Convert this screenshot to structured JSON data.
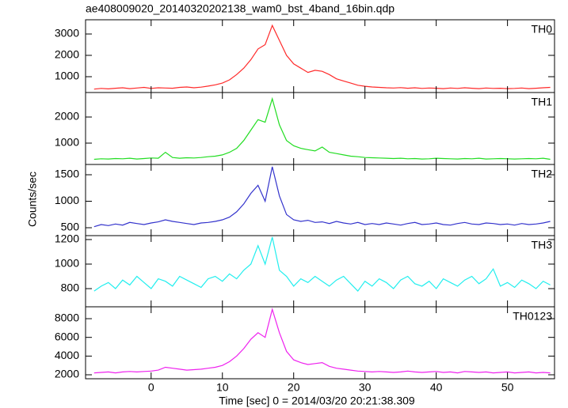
{
  "title": "ae408009020_20140320202138_wam0_bst_4band_16bin.qdp",
  "xlabel": "Time [sec] 0 = 2014/03/20 20:21:38.309",
  "ylabel": "Counts/sec",
  "chart_data": [
    {
      "type": "line",
      "xlim": [
        -9.2,
        56.6
      ],
      "xticks": [
        0,
        10,
        20,
        30,
        40,
        50
      ],
      "ylim": [
        259,
        3667
      ],
      "yticks": [
        1000,
        2000,
        3000
      ],
      "x": [
        -8,
        -7,
        -6,
        -5,
        -4,
        -3,
        -2,
        -1,
        0,
        1,
        2,
        3,
        4,
        5,
        6,
        7,
        8,
        9,
        10,
        11,
        12,
        13,
        14,
        15,
        16,
        17,
        18,
        19,
        20,
        21,
        22,
        23,
        24,
        25,
        26,
        27,
        28,
        29,
        30,
        31,
        32,
        33,
        34,
        35,
        36,
        37,
        38,
        39,
        40,
        41,
        42,
        43,
        44,
        45,
        46,
        47,
        48,
        49,
        50,
        51,
        52,
        53,
        54,
        55,
        56
      ],
      "series": [
        {
          "name": "TH0",
          "color": "#ff2a2a",
          "values": [
            420,
            450,
            430,
            460,
            480,
            440,
            470,
            500,
            450,
            480,
            470,
            460,
            500,
            520,
            480,
            510,
            560,
            620,
            700,
            850,
            1100,
            1400,
            1800,
            2300,
            2500,
            3400,
            2700,
            2000,
            1600,
            1400,
            1200,
            1300,
            1250,
            1100,
            900,
            800,
            700,
            600,
            550,
            520,
            500,
            480,
            470,
            490,
            460,
            480,
            450,
            470,
            460,
            440,
            470,
            450,
            480,
            460,
            440,
            470,
            450,
            460,
            440,
            450,
            470,
            440,
            460,
            480,
            500
          ]
        }
      ]
    },
    {
      "type": "line",
      "xlim": [
        -9.2,
        56.6
      ],
      "xticks": [
        0,
        10,
        20,
        30,
        40,
        50
      ],
      "ylim": [
        182,
        2939
      ],
      "yticks": [
        1000,
        2000
      ],
      "x": [
        -8,
        -7,
        -6,
        -5,
        -4,
        -3,
        -2,
        -1,
        0,
        1,
        2,
        3,
        4,
        5,
        6,
        7,
        8,
        9,
        10,
        11,
        12,
        13,
        14,
        15,
        16,
        17,
        18,
        19,
        20,
        21,
        22,
        23,
        24,
        25,
        26,
        27,
        28,
        29,
        30,
        31,
        32,
        33,
        34,
        35,
        36,
        37,
        38,
        39,
        40,
        41,
        42,
        43,
        44,
        45,
        46,
        47,
        48,
        49,
        50,
        51,
        52,
        53,
        54,
        55,
        56
      ],
      "series": [
        {
          "name": "TH1",
          "color": "#22dd22",
          "values": [
            380,
            400,
            390,
            410,
            400,
            420,
            390,
            410,
            430,
            420,
            650,
            450,
            420,
            440,
            430,
            450,
            480,
            500,
            550,
            650,
            800,
            1100,
            1500,
            1900,
            1800,
            2700,
            1700,
            1100,
            900,
            800,
            750,
            700,
            850,
            650,
            600,
            550,
            500,
            480,
            450,
            440,
            430,
            420,
            410,
            420,
            400,
            410,
            390,
            400,
            420,
            410,
            400,
            390,
            410,
            400,
            420,
            390,
            400,
            410,
            400,
            390,
            400,
            410,
            400,
            420,
            380
          ]
        }
      ]
    },
    {
      "type": "line",
      "xlim": [
        -9.2,
        56.6
      ],
      "xticks": [
        0,
        10,
        20,
        30,
        40,
        50
      ],
      "ylim": [
        351,
        1694
      ],
      "yticks": [
        500,
        1000,
        1500
      ],
      "x": [
        -8,
        -7,
        -6,
        -5,
        -4,
        -3,
        -2,
        -1,
        0,
        1,
        2,
        3,
        4,
        5,
        6,
        7,
        8,
        9,
        10,
        11,
        12,
        13,
        14,
        15,
        16,
        17,
        18,
        19,
        20,
        21,
        22,
        23,
        24,
        25,
        26,
        27,
        28,
        29,
        30,
        31,
        32,
        33,
        34,
        35,
        36,
        37,
        38,
        39,
        40,
        41,
        42,
        43,
        44,
        45,
        46,
        47,
        48,
        49,
        50,
        51,
        52,
        53,
        54,
        55,
        56
      ],
      "series": [
        {
          "name": "TH2",
          "color": "#3333cc",
          "values": [
            520,
            560,
            540,
            570,
            550,
            600,
            580,
            560,
            590,
            610,
            650,
            620,
            600,
            580,
            560,
            590,
            600,
            620,
            650,
            700,
            800,
            950,
            1150,
            1300,
            1000,
            1650,
            1100,
            750,
            650,
            620,
            640,
            600,
            610,
            580,
            620,
            590,
            570,
            600,
            560,
            580,
            560,
            590,
            570,
            550,
            580,
            600,
            560,
            570,
            590,
            560,
            550,
            580,
            600,
            570,
            560,
            590,
            580,
            560,
            570,
            550,
            580,
            560,
            570,
            590,
            620
          ]
        }
      ]
    },
    {
      "type": "line",
      "xlim": [
        -9.2,
        56.6
      ],
      "xticks": [
        0,
        10,
        20,
        30,
        40,
        50
      ],
      "ylim": [
        652,
        1232
      ],
      "yticks": [
        800,
        1000,
        1200
      ],
      "x": [
        -8,
        -7,
        -6,
        -5,
        -4,
        -3,
        -2,
        -1,
        0,
        1,
        2,
        3,
        4,
        5,
        6,
        7,
        8,
        9,
        10,
        11,
        12,
        13,
        14,
        15,
        16,
        17,
        18,
        19,
        20,
        21,
        22,
        23,
        24,
        25,
        26,
        27,
        28,
        29,
        30,
        31,
        32,
        33,
        34,
        35,
        36,
        37,
        38,
        39,
        40,
        41,
        42,
        43,
        44,
        45,
        46,
        47,
        48,
        49,
        50,
        51,
        52,
        53,
        54,
        55,
        56
      ],
      "series": [
        {
          "name": "TH3",
          "color": "#22eeee",
          "values": [
            780,
            820,
            850,
            800,
            870,
            830,
            900,
            850,
            800,
            880,
            860,
            820,
            900,
            870,
            840,
            810,
            880,
            900,
            860,
            920,
            880,
            950,
            1000,
            1150,
            1000,
            1220,
            950,
            900,
            820,
            880,
            850,
            900,
            860,
            820,
            870,
            900,
            840,
            780,
            860,
            820,
            880,
            850,
            800,
            870,
            900,
            840,
            820,
            860,
            800,
            880,
            850,
            820,
            870,
            900,
            840,
            880,
            960,
            820,
            850,
            810,
            870,
            840,
            800,
            860,
            830
          ]
        }
      ]
    },
    {
      "type": "line",
      "xlim": [
        -9.2,
        56.6
      ],
      "xticks": [
        0,
        10,
        20,
        30,
        40,
        50
      ],
      "ylim": [
        1576,
        9271
      ],
      "yticks": [
        2000,
        4000,
        6000,
        8000
      ],
      "x": [
        -8,
        -7,
        -6,
        -5,
        -4,
        -3,
        -2,
        -1,
        0,
        1,
        2,
        3,
        4,
        5,
        6,
        7,
        8,
        9,
        10,
        11,
        12,
        13,
        14,
        15,
        16,
        17,
        18,
        19,
        20,
        21,
        22,
        23,
        24,
        25,
        26,
        27,
        28,
        29,
        30,
        31,
        32,
        33,
        34,
        35,
        36,
        37,
        38,
        39,
        40,
        41,
        42,
        43,
        44,
        45,
        46,
        47,
        48,
        49,
        50,
        51,
        52,
        53,
        54,
        55,
        56
      ],
      "series": [
        {
          "name": "TH0123",
          "color": "#ee22ee",
          "values": [
            2200,
            2250,
            2300,
            2200,
            2300,
            2350,
            2300,
            2350,
            2400,
            2500,
            2800,
            2700,
            2600,
            2500,
            2550,
            2600,
            2700,
            2800,
            3000,
            3400,
            4000,
            4800,
            5800,
            6500,
            6000,
            9000,
            6500,
            4500,
            3600,
            3300,
            3100,
            3200,
            3300,
            2900,
            2700,
            2600,
            2500,
            2400,
            2350,
            2300,
            2350,
            2300,
            2250,
            2300,
            2400,
            2300,
            2250,
            2300,
            2350,
            2250,
            2300,
            2200,
            2350,
            2300,
            2250,
            2300,
            2200,
            2250,
            2300,
            2200,
            2250,
            2300,
            2200,
            2250,
            2200
          ]
        }
      ]
    }
  ]
}
